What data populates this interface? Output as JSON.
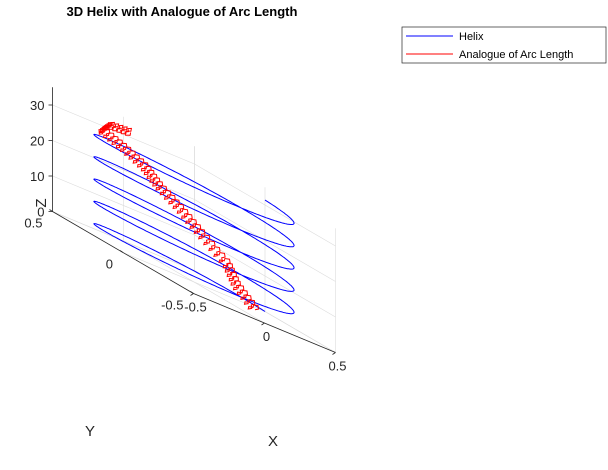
{
  "chart_data": {
    "type": "line",
    "title": "3D Helix with Analogue of Arc Length",
    "xlabel": "X",
    "ylabel": "Y",
    "zlabel": "Z",
    "x_ticks": [
      "-0.5",
      "0",
      "0.5"
    ],
    "y_ticks": [
      "-0.5",
      "0",
      "0.5"
    ],
    "z_ticks": [
      "0",
      "10",
      "20",
      "30"
    ],
    "xlim": [
      -0.5,
      0.5
    ],
    "ylim": [
      -0.5,
      0.5
    ],
    "zlim": [
      0,
      35
    ],
    "grid": true,
    "legend_position": "top-right",
    "series": [
      {
        "name": "Helix",
        "color": "#0000ff",
        "radius": 0.5,
        "z_start": 0,
        "z_end": 31.4,
        "turns": 5
      },
      {
        "name": "Analogue of Arc Length",
        "color": "#ff0000",
        "z_range": [
          0,
          31.4
        ]
      }
    ]
  }
}
